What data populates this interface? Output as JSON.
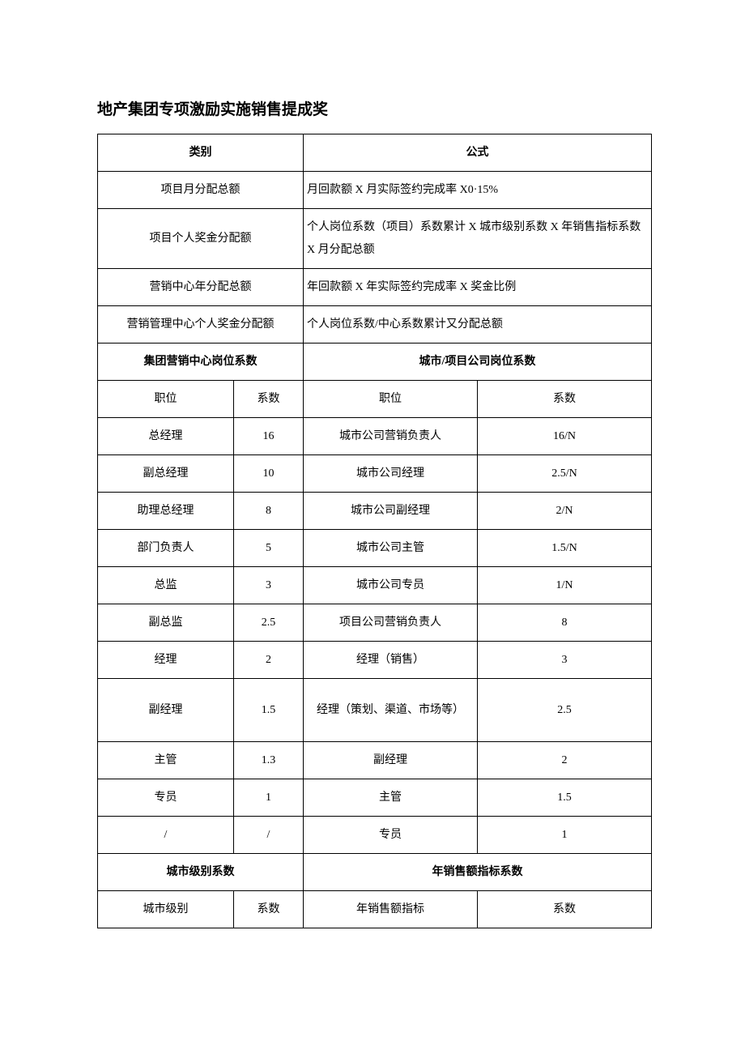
{
  "title": "地产集团专项激励实施销售提成奖",
  "section1": {
    "header_left": "类别",
    "header_right": "公式",
    "rows": [
      {
        "left": "项目月分配总额",
        "right": "月回款额 X 月实际签约完成率 X0·15%"
      },
      {
        "left": "项目个人奖金分配额",
        "right": "个人岗位系数（项目）系数累计 X 城市级别系数 X 年销售指标系数 X 月分配总额"
      },
      {
        "left": "营销中心年分配总额",
        "right": "年回款额 X 年实际签约完成率 X 奖金比例"
      },
      {
        "left": "营销管理中心个人奖金分配额",
        "right": "个人岗位系数/中心系数累计又分配总额"
      }
    ]
  },
  "section2": {
    "header_left": "集团营销中心岗位系数",
    "header_right": "城市/项目公司岗位系数",
    "subheader": {
      "pos1": "职位",
      "coef1": "系数",
      "pos2": "职位",
      "coef2": "系数"
    },
    "rows": [
      {
        "pos1": "总经理",
        "coef1": "16",
        "pos2": "城市公司营销负责人",
        "coef2": "16/N"
      },
      {
        "pos1": "副总经理",
        "coef1": "10",
        "pos2": "城市公司经理",
        "coef2": "2.5/N"
      },
      {
        "pos1": "助理总经理",
        "coef1": "8",
        "pos2": "城市公司副经理",
        "coef2": "2/N"
      },
      {
        "pos1": "部门负责人",
        "coef1": "5",
        "pos2": "城市公司主管",
        "coef2": "1.5/N"
      },
      {
        "pos1": "总监",
        "coef1": "3",
        "pos2": "城市公司专员",
        "coef2": "1/N"
      },
      {
        "pos1": "副总监",
        "coef1": "2.5",
        "pos2": "项目公司营销负责人",
        "coef2": "8"
      },
      {
        "pos1": "经理",
        "coef1": "2",
        "pos2": "经理（销售）",
        "coef2": "3"
      },
      {
        "pos1": "副经理",
        "coef1": "1.5",
        "pos2": "经理（策划、渠道、市场等）",
        "coef2": "2.5"
      },
      {
        "pos1": "主管",
        "coef1": "1.3",
        "pos2": "副经理",
        "coef2": "2"
      },
      {
        "pos1": "专员",
        "coef1": "1",
        "pos2": "主管",
        "coef2": "1.5"
      },
      {
        "pos1": "/",
        "coef1": "/",
        "pos2": "专员",
        "coef2": "1"
      }
    ]
  },
  "section3": {
    "header_left": "城市级别系数",
    "header_right": "年销售额指标系数",
    "subheader": {
      "c1": "城市级别",
      "c2": "系数",
      "c3": "年销售额指标",
      "c4": "系数"
    }
  }
}
